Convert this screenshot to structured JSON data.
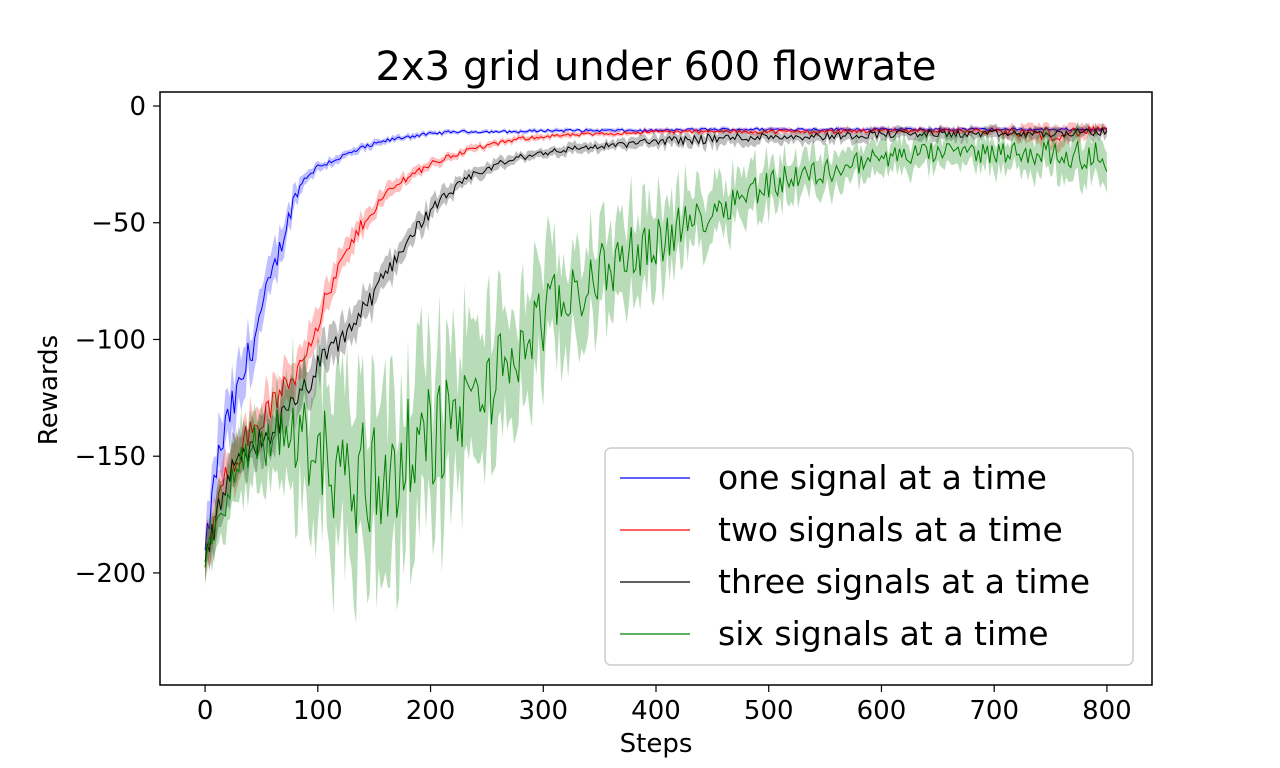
{
  "chart_data": {
    "type": "line",
    "title": "2x3 grid under 600 flowrate",
    "xlabel": "Steps",
    "ylabel": "Rewards",
    "xlim": [
      -40,
      840
    ],
    "ylim": [
      -248,
      6
    ],
    "xticks": [
      0,
      100,
      200,
      300,
      400,
      500,
      600,
      700,
      800
    ],
    "yticks": [
      0,
      -50,
      -100,
      -150,
      -200
    ],
    "xtick_labels": [
      "0",
      "100",
      "200",
      "300",
      "400",
      "500",
      "600",
      "700",
      "800"
    ],
    "ytick_labels": [
      "0",
      "−50",
      "−100",
      "−150",
      "−200"
    ],
    "grid": false,
    "legend_position": "lower-right",
    "shaded_band": "mean ± spread across runs",
    "series": [
      {
        "name": "one signal at a time",
        "color": "#0000ff",
        "x": [
          0,
          10,
          20,
          30,
          40,
          50,
          60,
          70,
          80,
          90,
          100,
          120,
          140,
          160,
          180,
          200,
          220,
          240,
          260,
          280,
          300,
          350,
          400,
          450,
          500,
          550,
          600,
          650,
          700,
          750,
          800
        ],
        "y": [
          -192,
          -155,
          -135,
          -122,
          -105,
          -88,
          -72,
          -55,
          -38,
          -30,
          -26,
          -22,
          -18,
          -15,
          -13,
          -12,
          -11,
          -11,
          -11,
          -11,
          -10.5,
          -10.5,
          -10.5,
          -10,
          -10,
          -10,
          -10,
          -10,
          -10,
          -10,
          -10
        ],
        "spread": [
          10,
          14,
          15,
          15,
          14,
          12,
          10,
          8,
          5,
          3,
          2.5,
          2,
          2,
          1.5,
          1.5,
          1.2,
          1,
          1,
          1,
          1,
          1,
          1,
          1,
          1,
          1,
          1,
          1,
          1,
          1,
          1,
          1
        ]
      },
      {
        "name": "two signals at a time",
        "color": "#ff0000",
        "x": [
          0,
          20,
          40,
          60,
          80,
          100,
          120,
          140,
          160,
          180,
          200,
          220,
          240,
          260,
          280,
          300,
          350,
          400,
          450,
          500,
          550,
          600,
          650,
          700,
          750,
          800
        ],
        "y": [
          -195,
          -155,
          -140,
          -128,
          -115,
          -92,
          -68,
          -50,
          -38,
          -30,
          -25,
          -21,
          -18,
          -16,
          -14,
          -13,
          -12,
          -11,
          -11,
          -11,
          -11,
          -10.5,
          -10.5,
          -11,
          -12,
          -10
        ],
        "spread": [
          10,
          12,
          12,
          11,
          10,
          9,
          7,
          5,
          4,
          3,
          2.5,
          2,
          2,
          1.5,
          1.5,
          1.5,
          1.2,
          1.2,
          1.2,
          1.5,
          1.5,
          1.5,
          1.5,
          2,
          6,
          2
        ]
      },
      {
        "name": "three signals at a time",
        "color": "#000000",
        "x": [
          0,
          20,
          40,
          60,
          80,
          100,
          120,
          140,
          160,
          180,
          200,
          220,
          240,
          260,
          280,
          300,
          330,
          360,
          400,
          450,
          500,
          550,
          600,
          650,
          700,
          750,
          800
        ],
        "y": [
          -195,
          -160,
          -148,
          -138,
          -128,
          -112,
          -100,
          -88,
          -72,
          -57,
          -45,
          -36,
          -29,
          -25,
          -22,
          -20,
          -18,
          -17,
          -15,
          -14,
          -13,
          -13,
          -12,
          -12,
          -12,
          -12,
          -11
        ],
        "spread": [
          10,
          12,
          12,
          12,
          11,
          10,
          9,
          8,
          7,
          6,
          5,
          4,
          3,
          3,
          2.5,
          2.5,
          2.5,
          2.5,
          3,
          4,
          3,
          3,
          3,
          3,
          3,
          3,
          3
        ]
      },
      {
        "name": "six signals at a time",
        "color": "#008000",
        "x": [
          0,
          20,
          40,
          60,
          80,
          100,
          120,
          140,
          160,
          180,
          200,
          220,
          240,
          260,
          280,
          300,
          330,
          360,
          400,
          430,
          460,
          500,
          550,
          600,
          650,
          700,
          750,
          800
        ],
        "y": [
          -195,
          -165,
          -148,
          -142,
          -140,
          -148,
          -158,
          -160,
          -158,
          -150,
          -142,
          -135,
          -125,
          -115,
          -105,
          -90,
          -80,
          -68,
          -58,
          -50,
          -42,
          -33,
          -28,
          -22,
          -20,
          -20,
          -20,
          -22
        ],
        "spread": [
          10,
          15,
          18,
          22,
          30,
          40,
          45,
          50,
          48,
          45,
          40,
          38,
          35,
          33,
          30,
          28,
          25,
          22,
          20,
          16,
          14,
          12,
          10,
          8,
          8,
          8,
          10,
          12
        ]
      }
    ]
  }
}
